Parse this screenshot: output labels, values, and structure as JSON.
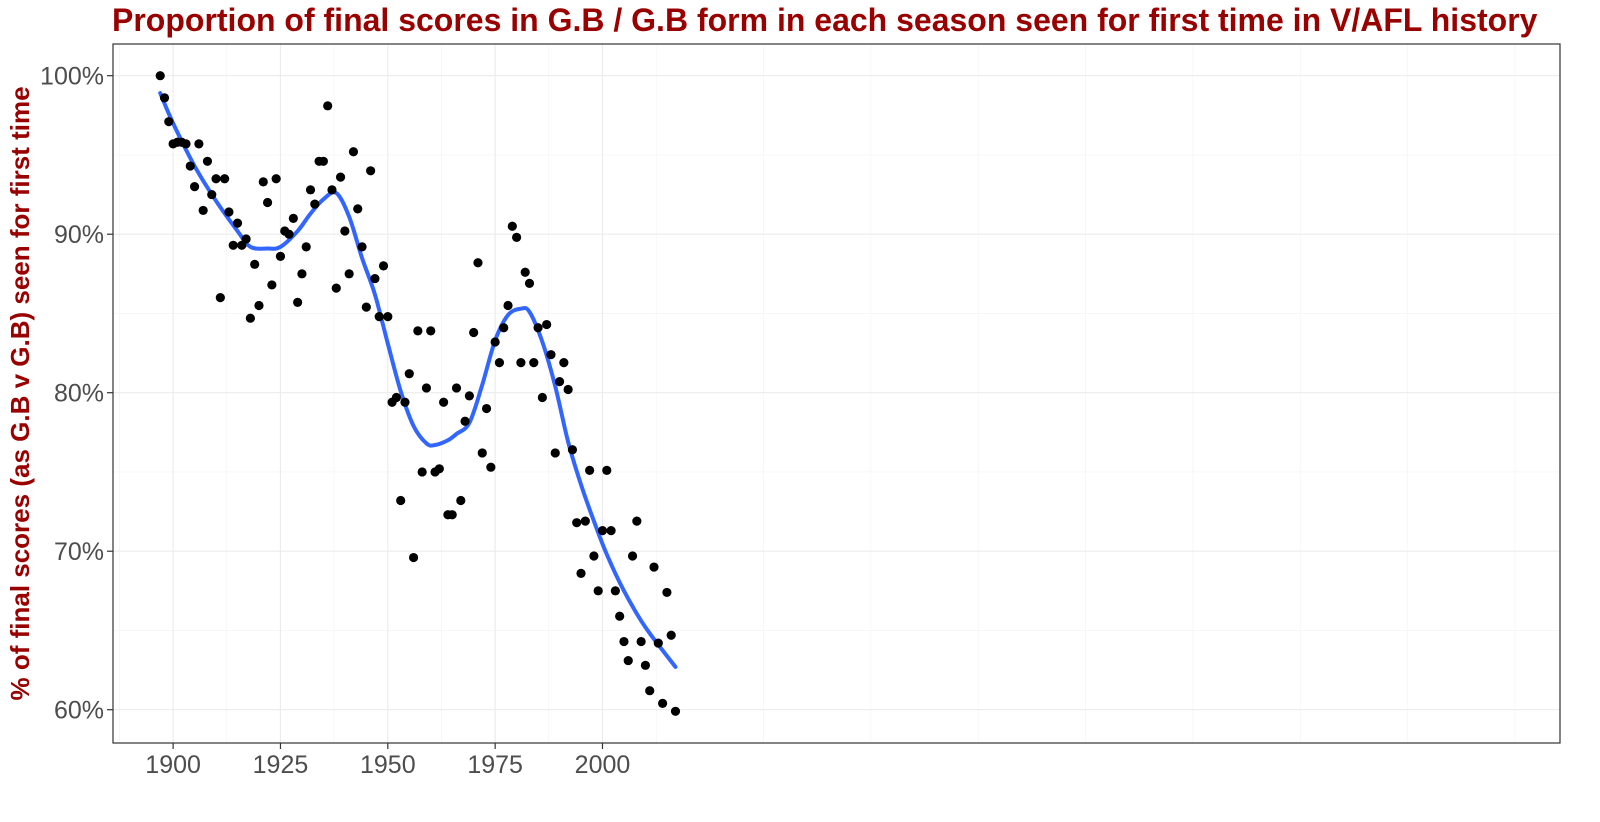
{
  "chart_data": {
    "type": "scatter",
    "title": "Proportion of final scores in G.B / G.B form in each season seen for first time in V/AFL history",
    "xlabel": "",
    "ylabel": "% of final scores (as G.B v G.B) seen for first time",
    "xlim": [
      1886,
      2223
    ],
    "ylim": [
      57.9,
      102.0
    ],
    "x_ticks": [
      1900,
      1925,
      1950,
      1975,
      2000
    ],
    "x_tick_labels": [
      "1900",
      "1925",
      "1950",
      "1975",
      "2000"
    ],
    "y_ticks": [
      60,
      70,
      80,
      90,
      100
    ],
    "y_tick_labels": [
      "60%",
      "70%",
      "80%",
      "90%",
      "100%"
    ],
    "grid": true,
    "legend": "none",
    "colors": {
      "title": "#990000",
      "axis_title": "#990000",
      "points": "#000000",
      "smooth": "#3366ff",
      "grid": "#ebebeb"
    },
    "series": [
      {
        "type": "points",
        "x": [
          1897,
          1898,
          1899,
          1900,
          1901,
          1902,
          1903,
          1904,
          1905,
          1906,
          1907,
          1908,
          1909,
          1910,
          1911,
          1912,
          1913,
          1914,
          1915,
          1916,
          1917,
          1918,
          1919,
          1920,
          1921,
          1922,
          1923,
          1924,
          1925,
          1926,
          1927,
          1928,
          1929,
          1930,
          1931,
          1932,
          1933,
          1934,
          1935,
          1936,
          1937,
          1938,
          1939,
          1940,
          1941,
          1942,
          1943,
          1944,
          1945,
          1946,
          1947,
          1948,
          1949,
          1950,
          1951,
          1952,
          1953,
          1954,
          1955,
          1956,
          1957,
          1958,
          1959,
          1960,
          1961,
          1962,
          1963,
          1964,
          1965,
          1966,
          1967,
          1968,
          1969,
          1970,
          1971,
          1972,
          1973,
          1974,
          1975,
          1976,
          1977,
          1978,
          1979,
          1980,
          1981,
          1982,
          1983,
          1984,
          1985,
          1986,
          1987,
          1988,
          1989,
          1990,
          1991,
          1992,
          1993,
          1994,
          1995,
          1996,
          1997,
          1998,
          1999,
          2000,
          2001,
          2002,
          2003,
          2004,
          2005,
          2006,
          2007,
          2008,
          2009,
          2010,
          2011,
          2012,
          2013,
          2014,
          2015,
          2016,
          2017
        ],
        "y": [
          100.0,
          98.6,
          97.1,
          95.7,
          95.8,
          95.8,
          95.7,
          94.3,
          93.0,
          95.7,
          91.5,
          94.6,
          92.5,
          93.5,
          86.0,
          93.5,
          91.4,
          89.3,
          90.7,
          89.3,
          89.7,
          84.7,
          88.1,
          85.5,
          93.3,
          92.0,
          86.8,
          93.5,
          88.6,
          90.2,
          90.0,
          91.0,
          85.7,
          87.5,
          89.2,
          92.8,
          91.9,
          94.6,
          94.6,
          98.1,
          92.8,
          86.6,
          93.6,
          90.2,
          87.5,
          95.2,
          91.6,
          89.2,
          85.4,
          94.0,
          87.2,
          84.8,
          88.0,
          84.8,
          79.4,
          79.7,
          73.2,
          79.4,
          81.2,
          69.6,
          83.9,
          75.0,
          80.3,
          83.9,
          75.0,
          75.2,
          79.4,
          72.3,
          72.3,
          80.3,
          73.2,
          78.2,
          79.8,
          83.8,
          88.2,
          76.2,
          79.0,
          75.3,
          83.2,
          81.9,
          84.1,
          85.5,
          90.5,
          89.8,
          81.9,
          87.6,
          86.9,
          81.9,
          84.1,
          79.7,
          84.3,
          82.4,
          76.2,
          80.7,
          81.9,
          80.2,
          76.4,
          71.8,
          68.6,
          71.9,
          75.1,
          69.7,
          67.5,
          71.3,
          75.1,
          71.3,
          67.5,
          65.9,
          64.3,
          63.1,
          69.7,
          71.9,
          64.3,
          62.8,
          61.2,
          69.0,
          64.2,
          60.4,
          67.4,
          64.7,
          59.9
        ]
      },
      {
        "type": "smooth",
        "x": [
          1897,
          1900,
          1905,
          1910,
          1915,
          1918,
          1922,
          1925,
          1929,
          1932,
          1935,
          1938,
          1941,
          1944,
          1947,
          1950,
          1953,
          1956,
          1959,
          1961,
          1964,
          1966,
          1969,
          1972,
          1975,
          1978,
          1981,
          1983,
          1986,
          1989,
          1992,
          1995,
          1998,
          2001,
          2005,
          2010,
          2017
        ],
        "y": [
          98.9,
          97.0,
          94.3,
          92.1,
          90.2,
          89.2,
          89.1,
          89.2,
          90.2,
          91.3,
          92.2,
          92.6,
          91.1,
          88.5,
          86.2,
          83.1,
          80.1,
          77.9,
          76.8,
          76.7,
          77.0,
          77.4,
          78.1,
          80.5,
          83.3,
          84.9,
          85.3,
          85.1,
          83.2,
          80.4,
          76.9,
          74.2,
          71.9,
          69.8,
          67.5,
          65.2,
          62.7
        ]
      }
    ]
  }
}
